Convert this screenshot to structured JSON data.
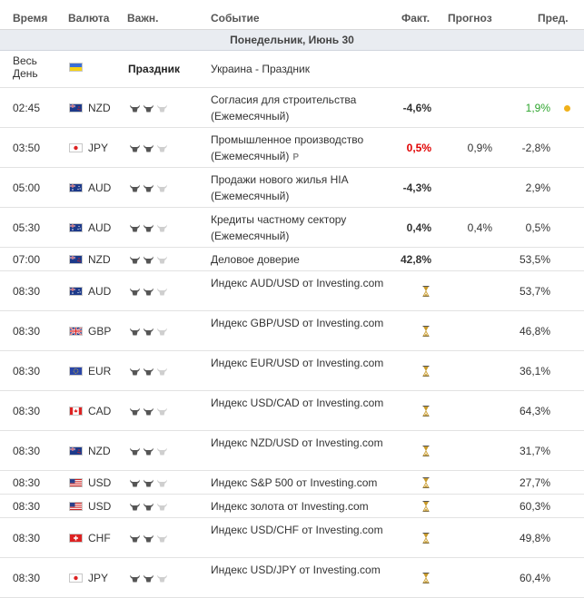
{
  "header": {
    "time": "Время",
    "currency": "Валюта",
    "importance": "Важн.",
    "event": "Событие",
    "actual": "Факт.",
    "forecast": "Прогноз",
    "previous": "Пред."
  },
  "day_label": "Понедельник, Июнь 30",
  "holiday": {
    "time": "Весь День",
    "label": "Праздник",
    "event": "Украина - Праздник",
    "flag": "ukraine-flag"
  },
  "events": [
    {
      "time": "02:45",
      "currency": "NZD",
      "flag": "nz-flag",
      "bulls": 2,
      "event": "Согласия для строительства (Ежемесячный)",
      "actual": "-4,6%",
      "forecast": "",
      "previous": "1,9%",
      "prev_color": "#2ea52e",
      "alert": true
    },
    {
      "time": "03:50",
      "currency": "JPY",
      "flag": "jp-flag",
      "bulls": 2,
      "event": "Промышленное производство (Ежемесячный)",
      "premium": "P",
      "actual": "0,5%",
      "actual_color": "#e00000",
      "forecast": "0,9%",
      "previous": "-2,8%"
    },
    {
      "time": "05:00",
      "currency": "AUD",
      "flag": "au-flag",
      "bulls": 2,
      "event": "Продажи нового жилья HIA (Ежемесячный)",
      "actual": "-4,3%",
      "forecast": "",
      "previous": "2,9%"
    },
    {
      "time": "05:30",
      "currency": "AUD",
      "flag": "au-flag",
      "bulls": 2,
      "event": "Кредиты частному сектору (Ежемесячный)",
      "actual": "0,4%",
      "forecast": "0,4%",
      "previous": "0,5%"
    },
    {
      "time": "07:00",
      "currency": "NZD",
      "flag": "nz-flag",
      "bulls": 2,
      "event": "Деловое доверие",
      "actual": "42,8%",
      "forecast": "",
      "previous": "53,5%"
    },
    {
      "time": "08:30",
      "currency": "AUD",
      "flag": "au-flag",
      "bulls": 2,
      "event": "Индекс AUD/USD от Investing.com",
      "pending": true,
      "actual": "",
      "forecast": "",
      "previous": "53,7%"
    },
    {
      "time": "08:30",
      "currency": "GBP",
      "flag": "gb-flag",
      "bulls": 2,
      "event": "Индекс GBP/USD от Investing.com",
      "pending": true,
      "actual": "",
      "forecast": "",
      "previous": "46,8%"
    },
    {
      "time": "08:30",
      "currency": "EUR",
      "flag": "eu-flag",
      "bulls": 2,
      "event": "Индекс EUR/USD от Investing.com",
      "pending": true,
      "actual": "",
      "forecast": "",
      "previous": "36,1%"
    },
    {
      "time": "08:30",
      "currency": "CAD",
      "flag": "ca-flag",
      "bulls": 2,
      "event": "Индекс USD/CAD от Investing.com",
      "pending": true,
      "actual": "",
      "forecast": "",
      "previous": "64,3%"
    },
    {
      "time": "08:30",
      "currency": "NZD",
      "flag": "nz-flag",
      "bulls": 2,
      "event": "Индекс NZD/USD от Investing.com",
      "pending": true,
      "actual": "",
      "forecast": "",
      "previous": "31,7%"
    },
    {
      "time": "08:30",
      "currency": "USD",
      "flag": "us-flag",
      "bulls": 2,
      "event": "Индекс S&P 500 от Investing.com",
      "pending": true,
      "actual": "",
      "forecast": "",
      "previous": "27,7%"
    },
    {
      "time": "08:30",
      "currency": "USD",
      "flag": "us-flag",
      "bulls": 2,
      "event": "Индекс золота от Investing.com",
      "pending": true,
      "actual": "",
      "forecast": "",
      "previous": "60,3%"
    },
    {
      "time": "08:30",
      "currency": "CHF",
      "flag": "ch-flag",
      "bulls": 2,
      "event": "Индекс USD/CHF от Investing.com",
      "pending": true,
      "actual": "",
      "forecast": "",
      "previous": "49,8%"
    },
    {
      "time": "08:30",
      "currency": "JPY",
      "flag": "jp-flag",
      "bulls": 2,
      "event": "Индекс USD/JPY от Investing.com",
      "pending": true,
      "actual": "",
      "forecast": "",
      "previous": "60,4%"
    }
  ]
}
